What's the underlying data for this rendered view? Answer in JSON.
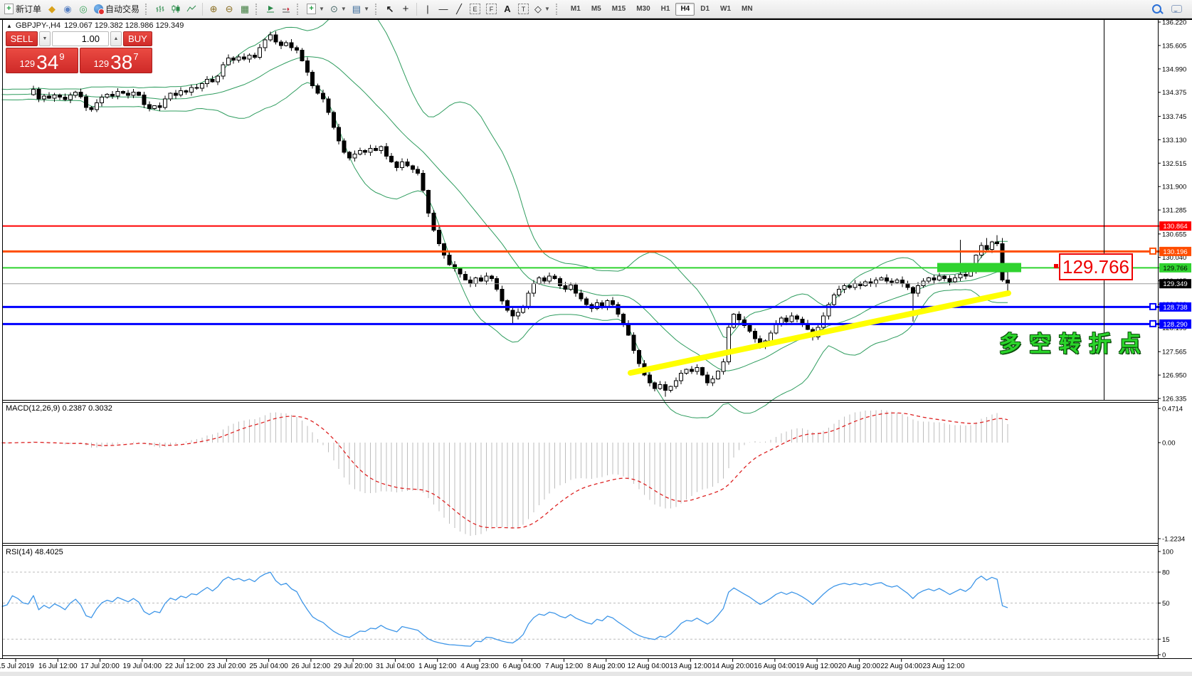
{
  "toolbar": {
    "new_order_label": "新订单",
    "auto_trading_label": "自动交易",
    "timeframes": [
      "M1",
      "M5",
      "M15",
      "M30",
      "H1",
      "H4",
      "D1",
      "W1",
      "MN"
    ],
    "active_timeframe": "H4"
  },
  "symbol_bar": {
    "title": "GBPJPY-,H4",
    "ohlc_text": "129.067 129.382 128.986 129.349"
  },
  "trade_panel": {
    "sell_label": "SELL",
    "buy_label": "BUY",
    "volume": "1.00",
    "sell_price": {
      "prefix": "129",
      "big": "34",
      "pip": "9"
    },
    "buy_price": {
      "prefix": "129",
      "big": "38",
      "pip": "7"
    }
  },
  "main_chart": {
    "price_ticks": [
      "136.220",
      "135.605",
      "134.990",
      "134.375",
      "133.745",
      "133.130",
      "132.515",
      "131.900",
      "131.285",
      "130.655",
      "130.040",
      "129.425",
      "128.810",
      "128.195",
      "127.565",
      "126.950",
      "126.335"
    ],
    "levels": [
      {
        "label": "130.864",
        "value": 130.864,
        "color": "#FF0000",
        "text_color": "#FFFFFF",
        "width": 2,
        "handle": false
      },
      {
        "label": "130.196",
        "value": 130.196,
        "color": "#FF4D00",
        "text_color": "#FFFFFF",
        "width": 3,
        "handle": true
      },
      {
        "label": "129.766",
        "value": 129.766,
        "color": "#2FD32F",
        "text_color": "#000000",
        "width": 2,
        "handle": false
      },
      {
        "label": "128.738",
        "value": 128.738,
        "color": "#0000FF",
        "text_color": "#FFFFFF",
        "width": 3,
        "handle": true
      },
      {
        "label": "128.290",
        "value": 128.29,
        "color": "#0000FF",
        "text_color": "#FFFFFF",
        "width": 3,
        "handle": true
      }
    ],
    "current_price": {
      "label": "129.349",
      "value": 129.349
    },
    "callout": {
      "text": "129.766"
    },
    "annotation": {
      "text": "多空转折点"
    },
    "highlight_zone": {
      "price": 129.766
    }
  },
  "indicators": {
    "macd": {
      "label": "MACD(12,26,9) 0.2387 0.3032",
      "ticks": [
        "0.4714",
        "0.00",
        "-1.2234"
      ]
    },
    "rsi": {
      "label": "RSI(14) 48.4025",
      "ticks": [
        "100",
        "80",
        "50",
        "15",
        "0"
      ],
      "level_values": [
        80,
        50,
        15
      ]
    }
  },
  "time_axis": [
    "15 Jul 2019",
    "16 Jul 12:00",
    "17 Jul 20:00",
    "19 Jul 04:00",
    "22 Jul 12:00",
    "23 Jul 20:00",
    "25 Jul 04:00",
    "26 Jul 12:00",
    "29 Jul 20:00",
    "31 Jul 04:00",
    "1 Aug 12:00",
    "4 Aug 23:00",
    "6 Aug 04:00",
    "7 Aug 12:00",
    "8 Aug 20:00",
    "12 Aug 04:00",
    "13 Aug 12:00",
    "14 Aug 20:00",
    "16 Aug 04:00",
    "19 Aug 12:00",
    "20 Aug 20:00",
    "22 Aug 04:00",
    "23 Aug 12:00"
  ],
  "colors": {
    "bull": "#FFFFFF",
    "bear": "#000000",
    "outline": "#000000",
    "bollinger": "#2E9C5E",
    "macd_hist": "#BDBDBD",
    "macd_signal": "#DD2222",
    "rsi_line": "#3E96E8",
    "rsi_grid": "#BBBBBB",
    "trendline": "#FFFF00",
    "zone": "#2FD32F",
    "panel_red": "#D32F2F",
    "callout": "#EE0000",
    "annotation_green": "#2AD52A",
    "current_line": "#9A9A9A"
  },
  "chart_data": {
    "type": "candlestick",
    "symbol": "GBPJPY",
    "timeframe": "H4",
    "ylim": [
      126.335,
      136.22
    ],
    "ohlc_current": {
      "open": 129.067,
      "high": 129.382,
      "low": 128.986,
      "close": 129.349
    },
    "closes": [
      134.45,
      134.2,
      134.28,
      134.22,
      134.3,
      134.25,
      134.18,
      134.3,
      134.38,
      134.26,
      133.98,
      133.92,
      134.1,
      134.25,
      134.32,
      134.28,
      134.4,
      134.35,
      134.3,
      134.38,
      134.3,
      134.05,
      133.95,
      134.02,
      133.98,
      134.2,
      134.35,
      134.3,
      134.42,
      134.38,
      134.5,
      134.48,
      134.6,
      134.72,
      134.65,
      134.8,
      135.1,
      135.28,
      135.22,
      135.3,
      135.25,
      135.35,
      135.3,
      135.55,
      135.75,
      135.88,
      135.7,
      135.6,
      135.68,
      135.55,
      135.48,
      135.2,
      134.9,
      134.55,
      134.35,
      134.2,
      133.85,
      133.45,
      133.1,
      132.8,
      132.65,
      132.75,
      132.85,
      132.8,
      132.9,
      132.85,
      132.95,
      132.7,
      132.55,
      132.4,
      132.55,
      132.45,
      132.35,
      132.25,
      131.8,
      131.2,
      130.75,
      130.4,
      130.1,
      129.85,
      129.75,
      129.6,
      129.45,
      129.35,
      129.5,
      129.42,
      129.55,
      129.48,
      129.2,
      128.9,
      128.65,
      128.5,
      128.6,
      128.75,
      129.1,
      129.35,
      129.5,
      129.42,
      129.55,
      129.48,
      129.3,
      129.2,
      129.32,
      129.1,
      128.95,
      128.8,
      128.7,
      128.85,
      128.75,
      128.9,
      128.8,
      128.55,
      128.3,
      128.0,
      127.6,
      127.25,
      126.95,
      126.75,
      126.6,
      126.7,
      126.55,
      126.65,
      126.8,
      127.0,
      127.1,
      127.05,
      127.15,
      126.95,
      126.75,
      126.85,
      127.05,
      127.3,
      128.2,
      128.55,
      128.4,
      128.25,
      128.1,
      127.9,
      127.7,
      127.85,
      128.05,
      128.3,
      128.45,
      128.35,
      128.5,
      128.42,
      128.3,
      128.15,
      127.95,
      128.2,
      128.5,
      128.8,
      129.05,
      129.2,
      129.3,
      129.25,
      129.35,
      129.3,
      129.4,
      129.35,
      129.45,
      129.5,
      129.42,
      129.38,
      129.45,
      129.35,
      129.25,
      129.1,
      129.3,
      129.42,
      129.5,
      129.45,
      129.55,
      129.48,
      129.4,
      129.5,
      129.6,
      129.55,
      129.7,
      130.1,
      130.35,
      130.25,
      130.45,
      130.4,
      129.45,
      129.349
    ],
    "overlays": [
      {
        "name": "Bollinger Bands",
        "period": 20,
        "deviation": 2
      }
    ],
    "macd": {
      "fast": 12,
      "slow": 26,
      "signal": 9,
      "value": 0.2387,
      "signal_value": 0.3032,
      "range": [
        -1.2234,
        0.4714
      ]
    },
    "rsi": {
      "period": 14,
      "value": 48.4025
    },
    "horizontal_levels": [
      130.864,
      130.196,
      129.766,
      128.738,
      128.29
    ]
  }
}
